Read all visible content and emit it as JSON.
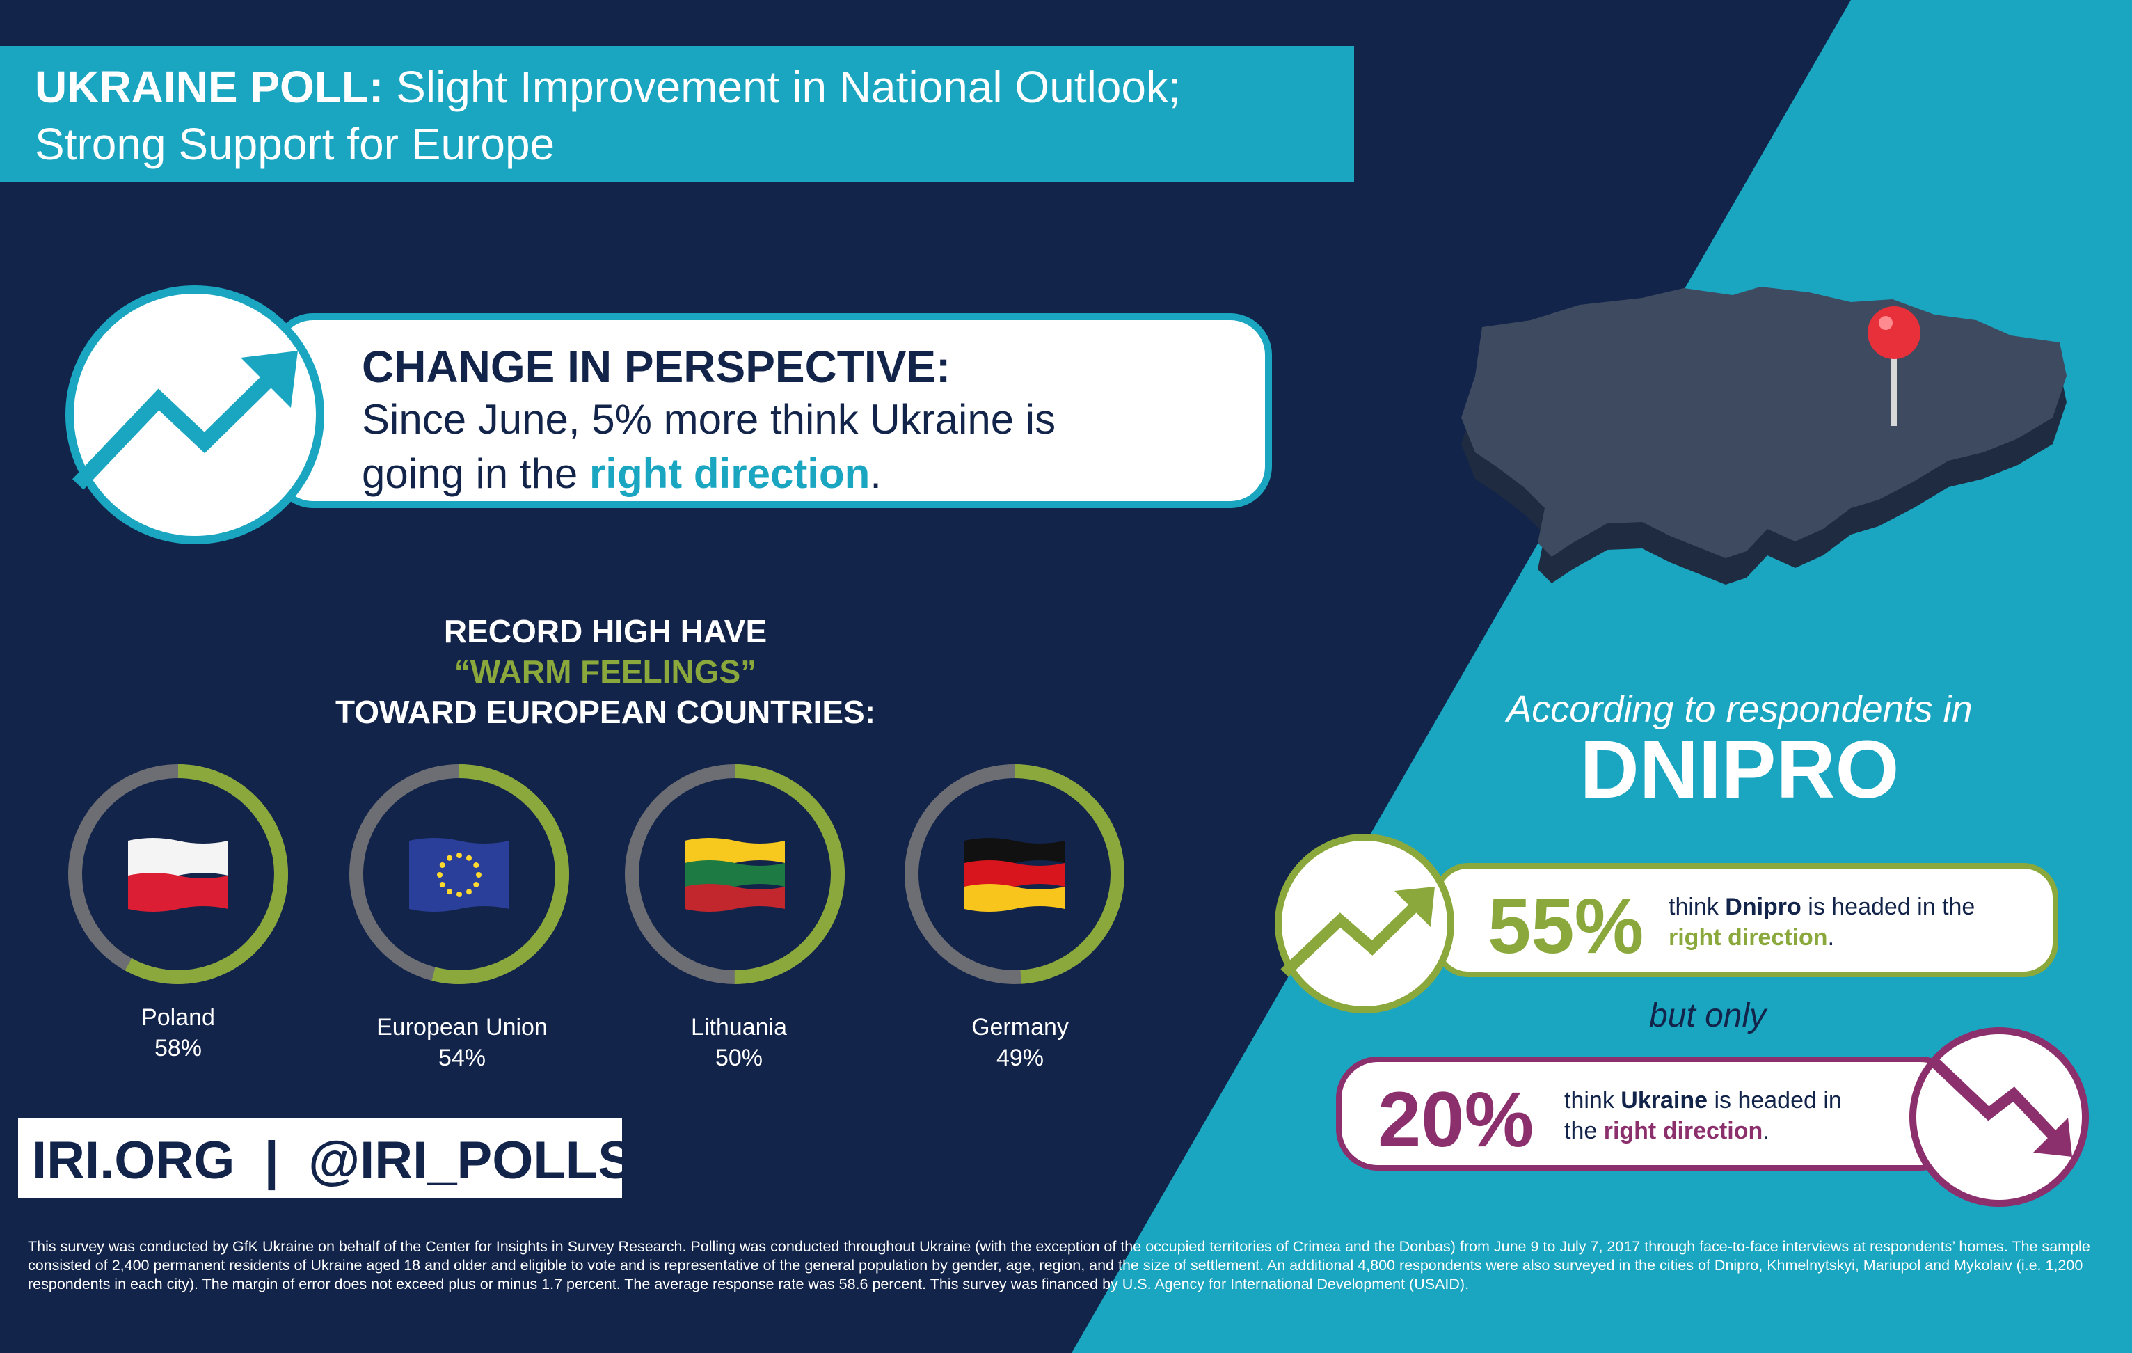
{
  "title": {
    "bold": "UKRAINE POLL:",
    "rest": "Slight Improvement in National Outlook;",
    "line2": "Strong Support for Europe"
  },
  "perspective": {
    "heading": "CHANGE IN PERSPECTIVE:",
    "line1": "Since June, 5% more think Ukraine is",
    "line2_before": "going in the ",
    "line2_highlight": "right direction",
    "line2_after": "."
  },
  "warm_feelings": {
    "line1": "RECORD HIGH HAVE",
    "line2": "“WARM FEELINGS”",
    "line3": "TOWARD EUROPEAN COUNTRIES:",
    "countries": [
      {
        "name": "Poland",
        "percent_label": "58%",
        "value": 58
      },
      {
        "name": "European Union",
        "percent_label": "54%",
        "value": 54
      },
      {
        "name": "Lithuania",
        "percent_label": "50%",
        "value": 50
      },
      {
        "name": "Germany",
        "percent_label": "49%",
        "value": 49
      }
    ]
  },
  "brand": "IRI.ORG  |  @IRI_POLLS",
  "dnipro": {
    "according": "According to respondents in",
    "city": "DNIPRO",
    "card55": {
      "percent": "55%",
      "text_before": "think ",
      "text_bold": "Dnipro",
      "text_after": " is headed in the",
      "line2": "right direction",
      "line2_after": "."
    },
    "but_only": "but only",
    "card20": {
      "percent": "20%",
      "text_before": "think ",
      "text_bold": "Ukraine",
      "text_after": " is headed in",
      "line2_before": "the ",
      "line2_highlight": "right direction",
      "line2_after": "."
    }
  },
  "footnote": "This survey was conducted by GfK Ukraine on behalf of the Center for Insights in Survey Research. Polling was conducted throughout Ukraine (with the exception of the occupied territories of Crimea and the Donbas) from June 9 to July 7, 2017 through face-to-face interviews at respondents’ homes. The sample consisted of 2,400 permanent residents of Ukraine aged 18 and older and eligible to vote and is representative of the general population by gender, age, region, and the size of settlement. An additional 4,800 respondents were also surveyed in the cities of Dnipro, Khmelnytskyi, Mariupol and Mykolaiv (i.e. 1,200 respondents in each city). The margin of error does not exceed plus or minus 1.7 percent. The average response rate was 58.6 percent. This survey was financed by U.S. Agency for International Development (USAID).",
  "colors": {
    "navy": "#13244a",
    "teal": "#1aa6c1",
    "green": "#8aa83b",
    "purple": "#8c2f6d",
    "ring_gray": "#6d6e73"
  }
}
